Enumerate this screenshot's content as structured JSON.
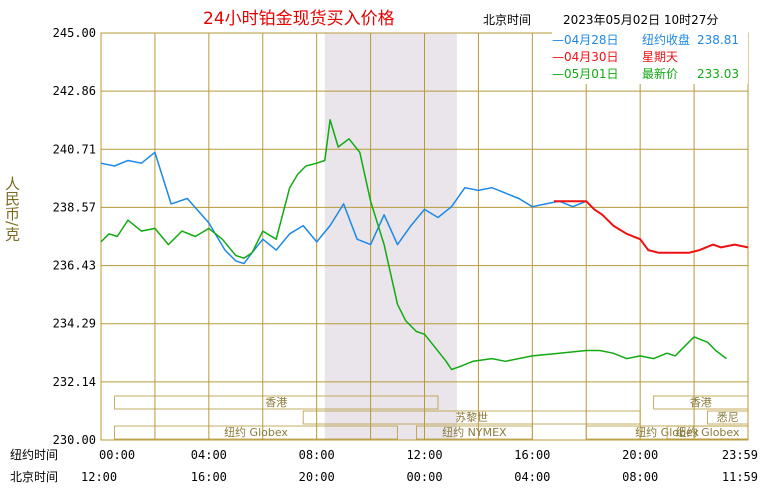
{
  "header": {
    "title": "24小时铂金现货买入价格",
    "timezone_label": "北京时间",
    "datetime": "2023年05月02日 10时27分"
  },
  "legend": [
    {
      "line": "—",
      "date": "04月28日",
      "desc": "纽约收盘",
      "value": "238.81",
      "color": "#1e88e5"
    },
    {
      "line": "—",
      "date": "04月30日",
      "desc": "星期天",
      "value": "",
      "color": "#ee1111"
    },
    {
      "line": "—",
      "date": "05月01日",
      "desc": "最新价",
      "value": "233.03",
      "color": "#11aa11"
    }
  ],
  "rows": {
    "ny_label": "纽约时间",
    "bj_label": "北京时间"
  },
  "sessions": [
    {
      "label": "香港",
      "t0": 0.5,
      "t1": 12.5
    },
    {
      "label": "苏黎世",
      "t0": 7.5,
      "t1": 20.0
    },
    {
      "label": "纽约 Globex",
      "t0": 0.5,
      "t1": 11.0
    },
    {
      "label": "纽约 NYMEX",
      "t0": 11.7,
      "t1": 16.0
    },
    {
      "label": "纽约 Globex",
      "t0": 18.0,
      "t1": 24.0
    },
    {
      "label": "香港",
      "t0": 20.5,
      "t1": 27.0
    },
    {
      "label": "悉尼",
      "t0": 22.5,
      "t1": 27.0
    },
    {
      "label": "纽约 Globex",
      "t0": 21.0,
      "t1": 28.0
    }
  ],
  "colors": {
    "grid": "#b89a3a",
    "shade": "#e9e5ea",
    "blue": "#1e88e5",
    "red": "#ee1111",
    "green": "#11aa11"
  },
  "chart_data": {
    "type": "line",
    "title": "24小时铂金现货买入价格",
    "ylabel": "人民币/克",
    "ylim": [
      230.0,
      245.0
    ],
    "xlim": [
      0,
      24
    ],
    "y_ticks": [
      "245.00",
      "242.86",
      "240.71",
      "238.57",
      "236.43",
      "234.29",
      "232.14",
      "230.00"
    ],
    "x_ticks_ny": [
      "00:00",
      "04:00",
      "08:00",
      "12:00",
      "16:00",
      "20:00",
      "23:59"
    ],
    "x_ticks_bj": [
      "12:00",
      "16:00",
      "20:00",
      "00:00",
      "04:00",
      "08:00",
      "11:59"
    ],
    "shaded_range": [
      8.3,
      13.2
    ],
    "series": [
      {
        "name": "04月28日",
        "color": "#1e88e5",
        "x": [
          0,
          0.5,
          1,
          1.5,
          2,
          2.6,
          3.2,
          4.0,
          4.6,
          5.0,
          5.3,
          5.6,
          6.0,
          6.5,
          7.0,
          7.5,
          8.0,
          8.5,
          9.0,
          9.5,
          10.0,
          10.5,
          11.0,
          11.5,
          12.0,
          12.5,
          13.0,
          13.5,
          14.0,
          14.5,
          15.0,
          15.5,
          16.0,
          16.5,
          17.0,
          17.5,
          18.0
        ],
        "y": [
          240.2,
          240.1,
          240.3,
          240.2,
          240.6,
          238.7,
          238.9,
          238.0,
          237.0,
          236.6,
          236.5,
          236.9,
          237.4,
          237.0,
          237.6,
          237.9,
          237.3,
          237.9,
          238.7,
          237.4,
          237.2,
          238.3,
          237.2,
          237.9,
          238.5,
          238.2,
          238.6,
          239.3,
          239.2,
          239.3,
          239.1,
          238.9,
          238.6,
          238.7,
          238.8,
          238.6,
          238.8
        ]
      },
      {
        "name": "04月30日",
        "color": "#ee1111",
        "x": [
          16.8,
          17.5,
          18.0,
          18.3,
          18.6,
          19.0,
          19.5,
          20.0,
          20.3,
          20.7,
          21.0,
          21.3,
          21.8,
          22.2,
          22.7,
          23.0,
          23.5,
          24.0
        ],
        "y": [
          238.8,
          238.8,
          238.8,
          238.5,
          238.3,
          237.9,
          237.6,
          237.4,
          237.0,
          236.9,
          236.9,
          236.9,
          236.9,
          237.0,
          237.2,
          237.1,
          237.2,
          237.1
        ]
      },
      {
        "name": "05月01日",
        "color": "#11aa11",
        "x": [
          0,
          0.3,
          0.6,
          1.0,
          1.5,
          2.0,
          2.5,
          3.0,
          3.5,
          4.0,
          4.5,
          5.0,
          5.3,
          5.6,
          6.0,
          6.5,
          7.0,
          7.3,
          7.6,
          8.0,
          8.3,
          8.5,
          8.8,
          9.2,
          9.6,
          10.0,
          10.5,
          11.0,
          11.3,
          11.7,
          12.0,
          12.4,
          12.8,
          13.0,
          13.3,
          13.8,
          14.5,
          15.0,
          16.0,
          17.0,
          18.0,
          18.5,
          19.0,
          19.5,
          20.0,
          20.5,
          21.0,
          21.3,
          21.6,
          22.0,
          22.5,
          22.8,
          23.2
        ],
        "y": [
          237.3,
          237.6,
          237.5,
          238.1,
          237.7,
          237.8,
          237.2,
          237.7,
          237.5,
          237.8,
          237.4,
          236.8,
          236.7,
          236.9,
          237.7,
          237.4,
          239.3,
          239.8,
          240.1,
          240.2,
          240.3,
          241.8,
          240.8,
          241.1,
          240.6,
          238.8,
          237.2,
          235.0,
          234.4,
          234.0,
          233.9,
          233.4,
          232.9,
          232.6,
          232.7,
          232.9,
          233.0,
          232.9,
          233.1,
          233.2,
          233.3,
          233.3,
          233.2,
          233.0,
          233.1,
          233.0,
          233.2,
          233.1,
          233.4,
          233.8,
          233.6,
          233.3,
          233.0
        ]
      }
    ]
  }
}
